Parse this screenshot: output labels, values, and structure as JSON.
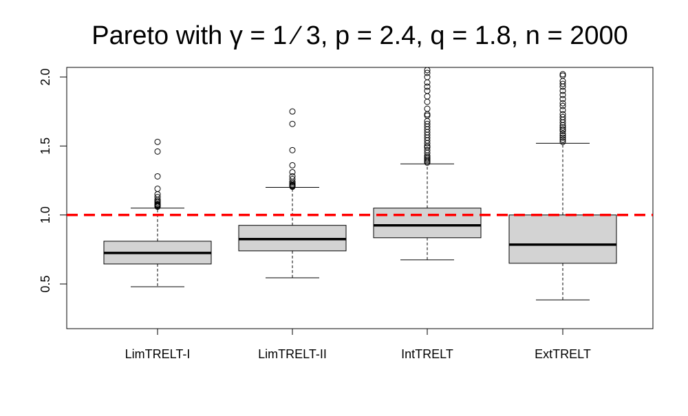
{
  "chart_data": {
    "type": "box",
    "title": "Pareto with γ = 1 ⁄ 3, p = 2.4, q = 1.8, n = 2000",
    "xlabel": "",
    "ylabel": "",
    "categories": [
      "LimTRELT-I",
      "LimTRELT-II",
      "IntTRELT",
      "ExtTRELT"
    ],
    "ylim": [
      0.18,
      2.07
    ],
    "yticks": [
      0.5,
      1.0,
      1.5,
      2.0
    ],
    "ytick_labels": [
      "0.5",
      "1.0",
      "1.5",
      "2.0"
    ],
    "grid": false,
    "reference_line": {
      "y": 1.0,
      "color": "#ff0000",
      "style": "dashed"
    },
    "box_fill": "#d3d3d3",
    "boxes": [
      {
        "name": "LimTRELT-I",
        "whisker_low": 0.48,
        "q1": 0.645,
        "median": 0.725,
        "q3": 0.81,
        "whisker_high": 1.05,
        "outliers": [
          1.06,
          1.065,
          1.07,
          1.075,
          1.08,
          1.09,
          1.1,
          1.11,
          1.13,
          1.15,
          1.19,
          1.28,
          1.46,
          1.53
        ]
      },
      {
        "name": "LimTRELT-II",
        "whisker_low": 0.545,
        "q1": 0.74,
        "median": 0.825,
        "q3": 0.925,
        "whisker_high": 1.2,
        "outliers": [
          1.205,
          1.21,
          1.215,
          1.22,
          1.23,
          1.24,
          1.26,
          1.28,
          1.31,
          1.36,
          1.47,
          1.66,
          1.75
        ]
      },
      {
        "name": "IntTRELT",
        "whisker_low": 0.675,
        "q1": 0.835,
        "median": 0.925,
        "q3": 1.05,
        "whisker_high": 1.37,
        "outliers": [
          1.38,
          1.39,
          1.4,
          1.41,
          1.42,
          1.43,
          1.45,
          1.47,
          1.49,
          1.5,
          1.52,
          1.54,
          1.56,
          1.58,
          1.6,
          1.62,
          1.64,
          1.66,
          1.68,
          1.72,
          1.73,
          1.77,
          1.82,
          1.86,
          1.9,
          1.93,
          1.96,
          2.0,
          2.03,
          2.05
        ]
      },
      {
        "name": "ExtTRELT",
        "whisker_low": 0.385,
        "q1": 0.65,
        "median": 0.785,
        "q3": 1.0,
        "whisker_high": 1.52,
        "outliers": [
          1.53,
          1.545,
          1.56,
          1.575,
          1.59,
          1.61,
          1.62,
          1.635,
          1.65,
          1.67,
          1.69,
          1.71,
          1.73,
          1.76,
          1.79,
          1.81,
          1.84,
          1.87,
          1.9,
          1.93,
          1.95,
          1.97,
          2.01,
          2.02
        ]
      }
    ]
  }
}
